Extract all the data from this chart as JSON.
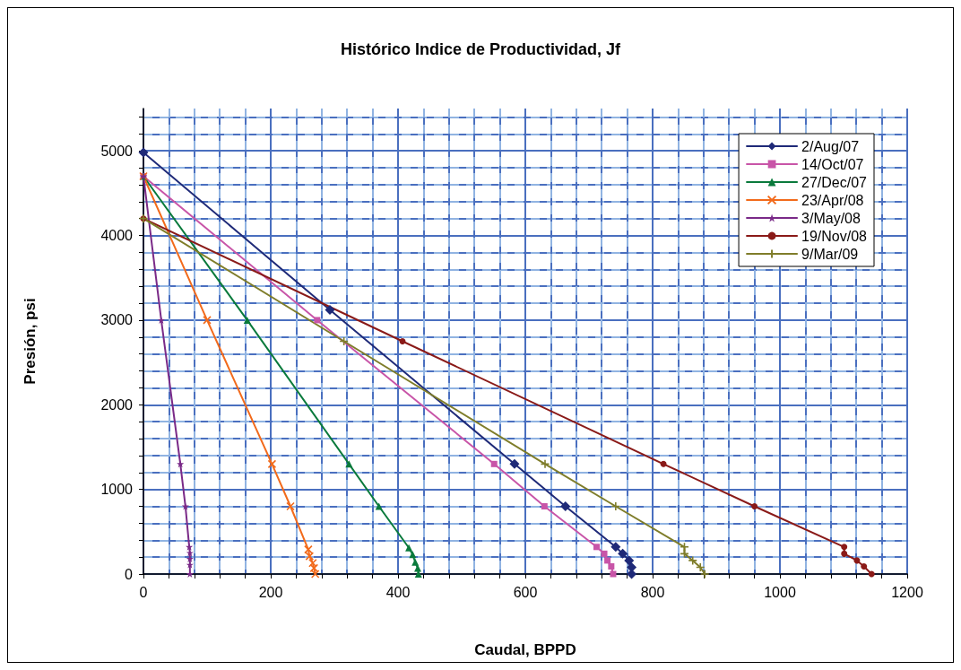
{
  "chart_data": {
    "type": "line",
    "title": "Histórico Indice de Productividad, Jf",
    "xlabel": "Caudal, BPPD",
    "ylabel": "Presión, psi",
    "xlim": [
      0,
      1200
    ],
    "ylim": [
      0,
      5500
    ],
    "xticks": [
      0,
      {
        "value": 40,
        "label": null
      },
      {
        "value": 80,
        "label": null
      },
      {
        "value": 120,
        "label": null
      },
      {
        "value": 160,
        "label": null
      },
      200,
      {
        "value": 240,
        "label": null
      },
      {
        "value": 280,
        "label": null
      },
      {
        "value": 320,
        "label": null
      },
      {
        "value": 360,
        "label": null
      },
      400,
      {
        "value": 440,
        "label": null
      },
      {
        "value": 480,
        "label": null
      },
      {
        "value": 520,
        "label": null
      },
      {
        "value": 560,
        "label": null
      },
      600,
      {
        "value": 640,
        "label": null
      },
      {
        "value": 680,
        "label": null
      },
      {
        "value": 720,
        "label": null
      },
      {
        "value": 760,
        "label": null
      },
      800,
      {
        "value": 840,
        "label": null
      },
      {
        "value": 880,
        "label": null
      },
      {
        "value": 920,
        "label": null
      },
      {
        "value": 960,
        "label": null
      },
      1000,
      {
        "value": 1040,
        "label": null
      },
      {
        "value": 1080,
        "label": null
      },
      {
        "value": 1120,
        "label": null
      },
      {
        "value": 1160,
        "label": null
      },
      1200
    ],
    "yticks": [
      0,
      {
        "value": 200,
        "label": null
      },
      {
        "value": 400,
        "label": null
      },
      {
        "value": 600,
        "label": null
      },
      {
        "value": 800,
        "label": null
      },
      1000,
      {
        "value": 1200,
        "label": null
      },
      {
        "value": 1400,
        "label": null
      },
      {
        "value": 1600,
        "label": null
      },
      {
        "value": 1800,
        "label": null
      },
      2000,
      {
        "value": 2200,
        "label": null
      },
      {
        "value": 2400,
        "label": null
      },
      {
        "value": 2600,
        "label": null
      },
      {
        "value": 2800,
        "label": null
      },
      3000,
      {
        "value": 3200,
        "label": null
      },
      {
        "value": 3400,
        "label": null
      },
      {
        "value": 3600,
        "label": null
      },
      {
        "value": 3800,
        "label": null
      },
      4000,
      {
        "value": 4200,
        "label": null
      },
      {
        "value": 4400,
        "label": null
      },
      {
        "value": 4600,
        "label": null
      },
      {
        "value": 4800,
        "label": null
      },
      5000,
      {
        "value": 5200,
        "label": null
      },
      {
        "value": 5400,
        "label": null
      }
    ],
    "grid": true,
    "legend": "top right",
    "line_style": "solid",
    "series": [
      {
        "name": "2/Aug/07",
        "color": "#1f2a78",
        "marker": "diamond",
        "x": [
          0,
          293,
          583,
          663,
          742,
          753,
          763,
          767,
          767
        ],
        "values": [
          4980,
          3120,
          1300,
          800,
          320,
          240,
          160,
          80,
          0
        ]
      },
      {
        "name": "14/Oct/07",
        "color": "#c855a8",
        "marker": "square",
        "x": [
          0,
          273,
          551,
          630,
          712,
          724,
          729,
          735,
          738
        ],
        "values": [
          4700,
          3000,
          1300,
          800,
          320,
          240,
          160,
          90,
          0
        ]
      },
      {
        "name": "27/Dec/07",
        "color": "#0a7a3c",
        "marker": "triangle",
        "x": [
          0,
          163,
          323,
          370,
          417,
          423,
          427,
          431,
          432
        ],
        "values": [
          4700,
          3000,
          1300,
          800,
          310,
          230,
          140,
          70,
          0
        ]
      },
      {
        "name": "23/Apr/08",
        "color": "#f26a1b",
        "marker": "cross",
        "x": [
          0,
          100,
          202,
          231,
          259,
          261,
          266,
          268,
          270
        ],
        "values": [
          4700,
          3000,
          1300,
          800,
          290,
          210,
          130,
          70,
          0
        ]
      },
      {
        "name": "3/May/08",
        "color": "#7a2a88",
        "marker": "star",
        "x": [
          0,
          28,
          58,
          66,
          72,
          73,
          73,
          73,
          73
        ],
        "values": [
          4700,
          3000,
          1300,
          800,
          320,
          250,
          180,
          110,
          0
        ]
      },
      {
        "name": "19/Nov/08",
        "color": "#8a1a18",
        "marker": "circle",
        "x": [
          0,
          407,
          817,
          960,
          1101,
          1101,
          1121,
          1132,
          1144
        ],
        "values": [
          4200,
          2750,
          1300,
          800,
          320,
          240,
          160,
          90,
          0
        ]
      },
      {
        "name": "9/Mar/09",
        "color": "#7f7d2a",
        "marker": "plus",
        "x": [
          0,
          315,
          631,
          742,
          850,
          850,
          863,
          875,
          882
        ],
        "values": [
          4200,
          2750,
          1300,
          800,
          320,
          240,
          160,
          80,
          0
        ]
      }
    ]
  }
}
